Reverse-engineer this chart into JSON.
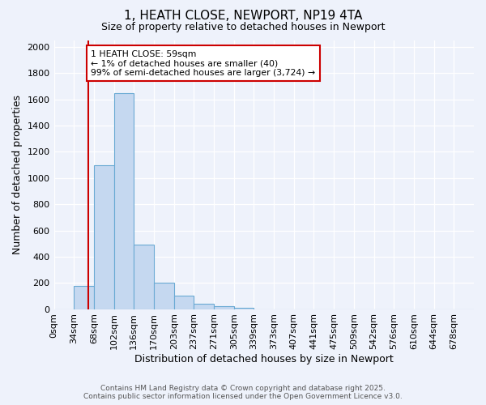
{
  "title": "1, HEATH CLOSE, NEWPORT, NP19 4TA",
  "subtitle": "Size of property relative to detached houses in Newport",
  "xlabel": "Distribution of detached houses by size in Newport",
  "ylabel": "Number of detached properties",
  "bin_labels": [
    "0sqm",
    "34sqm",
    "68sqm",
    "102sqm",
    "136sqm",
    "170sqm",
    "203sqm",
    "237sqm",
    "271sqm",
    "305sqm",
    "339sqm",
    "373sqm",
    "407sqm",
    "441sqm",
    "475sqm",
    "509sqm",
    "542sqm",
    "576sqm",
    "610sqm",
    "644sqm",
    "678sqm"
  ],
  "bar_values": [
    0,
    175,
    1100,
    1650,
    490,
    200,
    100,
    40,
    20,
    10,
    0,
    0,
    0,
    0,
    0,
    0,
    0,
    0,
    0,
    0,
    0
  ],
  "bar_color": "#c5d8f0",
  "bar_edge_color": "#6aaad4",
  "vline_x_bin": 1.74,
  "vline_color": "#cc0000",
  "annotation_text": "1 HEATH CLOSE: 59sqm\n← 1% of detached houses are smaller (40)\n99% of semi-detached houses are larger (3,724) →",
  "annotation_box_color": "#ffffff",
  "annotation_box_edge": "#cc0000",
  "ylim": [
    0,
    2050
  ],
  "yticks": [
    0,
    200,
    400,
    600,
    800,
    1000,
    1200,
    1400,
    1600,
    1800,
    2000
  ],
  "bg_color": "#eef2fb",
  "grid_color": "#ffffff",
  "footer_line1": "Contains HM Land Registry data © Crown copyright and database right 2025.",
  "footer_line2": "Contains public sector information licensed under the Open Government Licence v3.0."
}
